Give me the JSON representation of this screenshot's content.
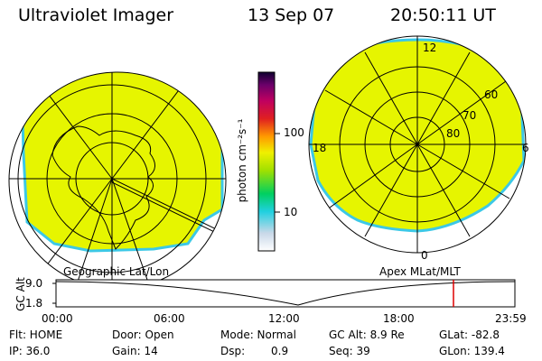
{
  "header": {
    "instrument": "Ultraviolet Imager",
    "date": "13 Sep 07",
    "time": "20:50:11 UT"
  },
  "colorbar": {
    "unit_label": "photon cm⁻²s⁻¹",
    "ticks": [
      "100",
      "10"
    ]
  },
  "left_panel": {
    "label": "Geographic Lat/Lon"
  },
  "right_panel": {
    "label": "Apex MLat/MLT",
    "mlt_labels": {
      "top": "12",
      "left": "18",
      "right": "6",
      "bottom": "0"
    },
    "lat_labels": [
      "60",
      "70",
      "80"
    ]
  },
  "alt_plot": {
    "ylabel": "GC Alt",
    "yticks": [
      "9.0",
      "1.8"
    ],
    "xticks": [
      "00:00",
      "06:00",
      "12:00",
      "18:00",
      "23:59"
    ],
    "marker_color": "#dd0000"
  },
  "info": {
    "flt": "Flt: HOME",
    "door": "Door: Open",
    "mode": "Mode: Normal",
    "gc_alt": "GC Alt: 8.9 Re",
    "glat": "GLat: -82.8",
    "ip": "IP: 36.0",
    "gain": "Gain: 14",
    "dsp_label": "Dsp:",
    "dsp_value": "0.9",
    "seq": "Seq: 39",
    "glon": "GLon: 139.4"
  },
  "colors": {
    "image_fill": "#e6f500",
    "image_edge": "#3cc8e6"
  }
}
